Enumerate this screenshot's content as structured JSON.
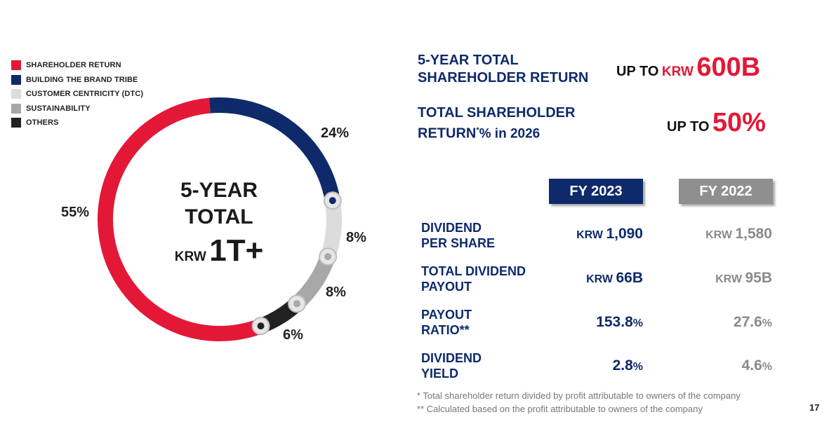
{
  "chart_data": {
    "type": "pie",
    "variant": "donut",
    "center_text": {
      "line1": "5-YEAR",
      "line2": "TOTAL",
      "line3_currency": "KRW",
      "line3_amount": "1T+"
    },
    "slices": [
      {
        "name": "SHAREHOLDER RETURN",
        "value": 55,
        "label": "55%",
        "color": "#e31837"
      },
      {
        "name": "BUILDING THE BRAND TRIBE",
        "value": 24,
        "label": "24%",
        "color": "#0e2a6b"
      },
      {
        "name": "CUSTOMER CENTRICITY (DTC)",
        "value": 8,
        "label": "8%",
        "color": "#dcdcdc"
      },
      {
        "name": "SUSTAINABILITY",
        "value": 8,
        "label": "8%",
        "color": "#a8a8a8"
      },
      {
        "name": "OTHERS",
        "value": 6,
        "label": "6%",
        "color": "#222222"
      }
    ],
    "legend_position": "top-left"
  },
  "headlines": {
    "h1_line1": "5-YEAR TOTAL",
    "h1_line2": "SHAREHOLDER RETURN",
    "h1_value_prefix": "UP TO",
    "h1_value_currency": "KRW",
    "h1_value_amount": "600B",
    "h2_line1": "TOTAL SHAREHOLDER",
    "h2_line2a": "RETURN",
    "h2_line2b": "*",
    "h2_line2c": "% in 2026",
    "h2_value_prefix": "UP TO",
    "h2_value_amount": "50%"
  },
  "table": {
    "col_2023": "FY 2023",
    "col_2022": "FY 2022",
    "rows": [
      {
        "label1": "DIVIDEND",
        "label2": "PER SHARE",
        "v2023_prefix": "KRW",
        "v2023": "1,090",
        "v2023_suffix": "",
        "v2022_prefix": "KRW",
        "v2022": "1,580",
        "v2022_suffix": ""
      },
      {
        "label1": "TOTAL DIVIDEND",
        "label2": "PAYOUT",
        "v2023_prefix": "KRW",
        "v2023": "66B",
        "v2023_suffix": "",
        "v2022_prefix": "KRW",
        "v2022": "95B",
        "v2022_suffix": ""
      },
      {
        "label1": "PAYOUT",
        "label2": "RATIO**",
        "v2023_prefix": "",
        "v2023": "153.8",
        "v2023_suffix": "%",
        "v2022_prefix": "",
        "v2022": "27.6",
        "v2022_suffix": "%"
      },
      {
        "label1": "DIVIDEND",
        "label2": "YIELD",
        "v2023_prefix": "",
        "v2023": "2.8",
        "v2023_suffix": "%",
        "v2022_prefix": "",
        "v2022": "4.6",
        "v2022_suffix": "%"
      }
    ]
  },
  "footnotes": {
    "f1": "* Total shareholder return divided by profit attributable to owners of the company",
    "f2": "** Calculated based on the profit attributable to owners of the company"
  },
  "page_number": "17"
}
